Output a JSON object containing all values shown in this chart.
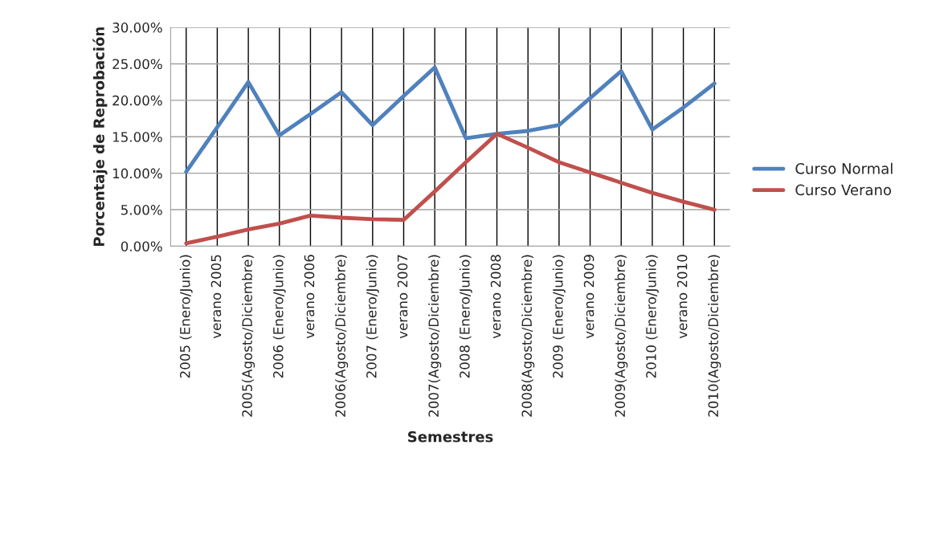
{
  "chart_data": {
    "type": "line",
    "xlabel": "Semestres",
    "ylabel": "Porcentaje de Reprobación",
    "categories": [
      "2005 (Enero/Junio)",
      "verano 2005",
      "2005(Agosto/Diciembre)",
      "2006 (Enero/Junio)",
      "verano 2006",
      "2006(Agosto/Diciembre)",
      "2007 (Enero/Junio)",
      "verano 2007",
      "2007(Agosto/Diciembre)",
      "2008 (Enero/Junio)",
      "verano 2008",
      "2008(Agosto/Diciembre)",
      "2009 (Enero/Junio)",
      "verano 2009",
      "2009(Agosto/Diciembre)",
      "2010 (Enero/Junio)",
      "verano 2010",
      "2010(Agosto/Diciembre)"
    ],
    "series": [
      {
        "name": "Curso Normal",
        "color": "#4f81bd",
        "values": [
          10.2,
          16.3,
          22.5,
          15.2,
          18.1,
          21.1,
          16.6,
          20.6,
          24.5,
          14.8,
          15.4,
          15.8,
          16.6,
          20.3,
          24.0,
          16.0,
          19.0,
          22.3
        ]
      },
      {
        "name": "Curso Verano",
        "color": "#c0504d",
        "values": [
          0.4,
          1.3,
          2.3,
          3.1,
          4.2,
          3.9,
          3.7,
          3.6,
          7.5,
          11.5,
          15.4,
          13.5,
          11.5,
          10.1,
          8.7,
          7.3,
          6.1,
          5.0
        ]
      }
    ],
    "ylim": [
      0,
      30
    ],
    "yticks": [
      {
        "value": 0,
        "label": "0.00%"
      },
      {
        "value": 5,
        "label": "5.00%"
      },
      {
        "value": 10,
        "label": "10.00%"
      },
      {
        "value": 15,
        "label": "15.00%"
      },
      {
        "value": 20,
        "label": "20.00%"
      },
      {
        "value": 25,
        "label": "25.00%"
      },
      {
        "value": 30,
        "label": "30.00%"
      }
    ],
    "grid": true,
    "legend": "right",
    "marker": "none",
    "line_style": "solid"
  }
}
